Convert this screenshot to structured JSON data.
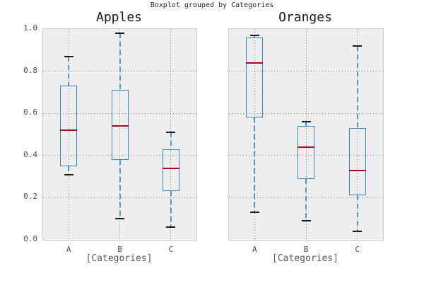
{
  "suptitle": "Boxplot grouped by Categories",
  "colors": {
    "box": "#348abd",
    "median": "#a60628",
    "whisker": "#4a98c9",
    "cap": "#1a1a1a",
    "plot_bg": "#eeeeee",
    "axis_edge": "#cccccc",
    "grid": "#757575",
    "tick_text": "#4d4d4d",
    "label_text": "#595959"
  },
  "chart_data": [
    {
      "type": "boxplot",
      "title": "Apples",
      "xlabel": "[Categories]",
      "categories": [
        "A",
        "B",
        "C"
      ],
      "ylim": [
        0.0,
        1.0
      ],
      "yticks": [
        "0.0",
        "0.2",
        "0.4",
        "0.6",
        "0.8",
        "1.0"
      ],
      "show_ytick_labels": true,
      "grid": "dotted",
      "boxes": [
        {
          "category": "A",
          "whislo": 0.31,
          "q1": 0.35,
          "med": 0.52,
          "q3": 0.73,
          "whishi": 0.87
        },
        {
          "category": "B",
          "whislo": 0.1,
          "q1": 0.38,
          "med": 0.54,
          "q3": 0.71,
          "whishi": 0.98
        },
        {
          "category": "C",
          "whislo": 0.06,
          "q1": 0.23,
          "med": 0.34,
          "q3": 0.43,
          "whishi": 0.51
        }
      ]
    },
    {
      "type": "boxplot",
      "title": "Oranges",
      "xlabel": "[Categories]",
      "categories": [
        "A",
        "B",
        "C"
      ],
      "ylim": [
        0.0,
        1.0
      ],
      "yticks": [
        "0.0",
        "0.2",
        "0.4",
        "0.6",
        "0.8",
        "1.0"
      ],
      "show_ytick_labels": false,
      "grid": "dotted",
      "boxes": [
        {
          "category": "A",
          "whislo": 0.13,
          "q1": 0.58,
          "med": 0.84,
          "q3": 0.96,
          "whishi": 0.97
        },
        {
          "category": "B",
          "whislo": 0.09,
          "q1": 0.29,
          "med": 0.44,
          "q3": 0.54,
          "whishi": 0.56
        },
        {
          "category": "C",
          "whislo": 0.04,
          "q1": 0.21,
          "med": 0.33,
          "q3": 0.53,
          "whishi": 0.92
        }
      ]
    }
  ]
}
